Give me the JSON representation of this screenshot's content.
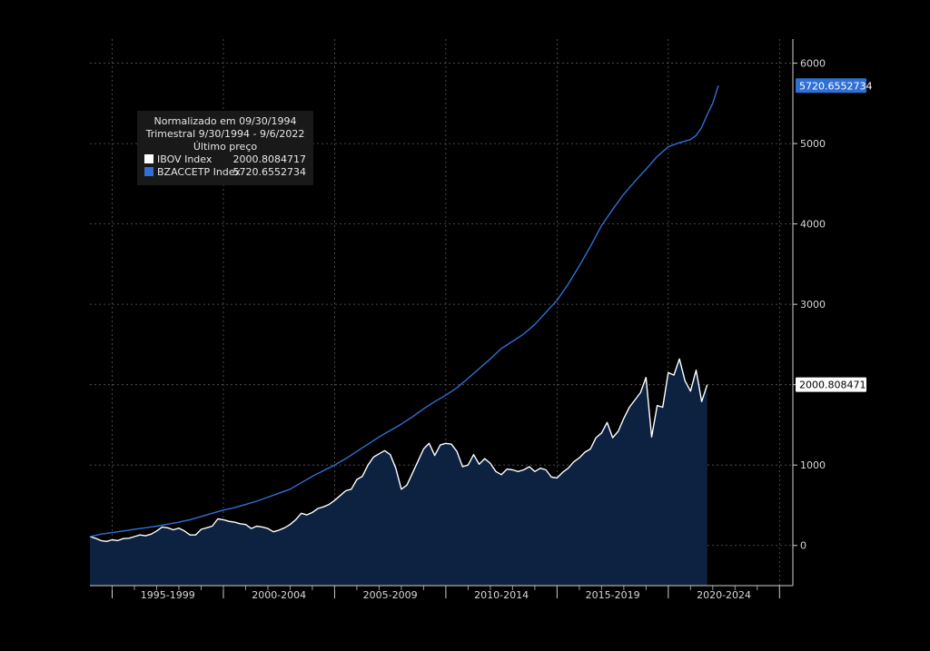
{
  "chart_data": {
    "type": "line",
    "legend": {
      "title_lines": [
        "Normalizado em 09/30/1994",
        "Trimestral 9/30/1994 - 9/6/2022",
        "Último preço"
      ],
      "entries": [
        {
          "label": "IBOV Index",
          "value": "2000.8084717"
        },
        {
          "label": "BZACCETP Index",
          "value": "5720.6552734"
        }
      ],
      "placement": "top-left"
    },
    "x_tick_labels": [
      "1995-1999",
      "2000-2004",
      "2005-2009",
      "2010-2014",
      "2015-2019",
      "2020-2024"
    ],
    "x_range": [
      1994.0,
      2025.6
    ],
    "ylim": [
      -500,
      6300
    ],
    "y_ticks": [
      0,
      1000,
      2000,
      3000,
      4000,
      5000,
      6000
    ],
    "grid": true,
    "series": [
      {
        "name": "IBOV Index",
        "color": "#ffffff",
        "fill": "#0d2240",
        "last_value_label": "2000.8084717",
        "points": [
          [
            1994.0,
            110
          ],
          [
            1994.25,
            90
          ],
          [
            1994.5,
            60
          ],
          [
            1994.75,
            50
          ],
          [
            1995.0,
            70
          ],
          [
            1995.25,
            60
          ],
          [
            1995.5,
            85
          ],
          [
            1995.75,
            90
          ],
          [
            1996.0,
            110
          ],
          [
            1996.25,
            130
          ],
          [
            1996.5,
            120
          ],
          [
            1996.75,
            140
          ],
          [
            1997.0,
            180
          ],
          [
            1997.25,
            230
          ],
          [
            1997.5,
            220
          ],
          [
            1997.75,
            195
          ],
          [
            1998.0,
            215
          ],
          [
            1998.25,
            180
          ],
          [
            1998.5,
            130
          ],
          [
            1998.75,
            130
          ],
          [
            1999.0,
            200
          ],
          [
            1999.25,
            220
          ],
          [
            1999.5,
            240
          ],
          [
            1999.75,
            330
          ],
          [
            2000.0,
            320
          ],
          [
            2000.25,
            300
          ],
          [
            2000.5,
            290
          ],
          [
            2000.75,
            270
          ],
          [
            2001.0,
            260
          ],
          [
            2001.25,
            210
          ],
          [
            2001.5,
            240
          ],
          [
            2001.75,
            230
          ],
          [
            2002.0,
            210
          ],
          [
            2002.25,
            170
          ],
          [
            2002.5,
            190
          ],
          [
            2002.75,
            220
          ],
          [
            2003.0,
            260
          ],
          [
            2003.25,
            320
          ],
          [
            2003.5,
            400
          ],
          [
            2003.75,
            380
          ],
          [
            2004.0,
            410
          ],
          [
            2004.25,
            460
          ],
          [
            2004.5,
            480
          ],
          [
            2004.75,
            510
          ],
          [
            2005.0,
            560
          ],
          [
            2005.25,
            620
          ],
          [
            2005.5,
            680
          ],
          [
            2005.75,
            700
          ],
          [
            2006.0,
            820
          ],
          [
            2006.25,
            860
          ],
          [
            2006.5,
            1000
          ],
          [
            2006.75,
            1100
          ],
          [
            2007.0,
            1140
          ],
          [
            2007.25,
            1180
          ],
          [
            2007.5,
            1130
          ],
          [
            2007.75,
            960
          ],
          [
            2008.0,
            700
          ],
          [
            2008.25,
            750
          ],
          [
            2008.5,
            900
          ],
          [
            2008.75,
            1050
          ],
          [
            2009.0,
            1200
          ],
          [
            2009.25,
            1270
          ],
          [
            2009.5,
            1120
          ],
          [
            2009.75,
            1250
          ],
          [
            2010.0,
            1270
          ],
          [
            2010.25,
            1260
          ],
          [
            2010.5,
            1170
          ],
          [
            2010.75,
            980
          ],
          [
            2011.0,
            1000
          ],
          [
            2011.25,
            1130
          ],
          [
            2011.5,
            1010
          ],
          [
            2011.75,
            1080
          ],
          [
            2012.0,
            1020
          ],
          [
            2012.25,
            920
          ],
          [
            2012.5,
            880
          ],
          [
            2012.75,
            950
          ],
          [
            2013.0,
            940
          ],
          [
            2013.25,
            920
          ],
          [
            2013.5,
            940
          ],
          [
            2013.75,
            980
          ],
          [
            2014.0,
            920
          ],
          [
            2014.25,
            960
          ],
          [
            2014.5,
            940
          ],
          [
            2014.75,
            850
          ],
          [
            2015.0,
            840
          ],
          [
            2015.25,
            910
          ],
          [
            2015.5,
            960
          ],
          [
            2015.75,
            1040
          ],
          [
            2016.0,
            1090
          ],
          [
            2016.25,
            1160
          ],
          [
            2016.5,
            1200
          ],
          [
            2016.75,
            1340
          ],
          [
            2017.0,
            1400
          ],
          [
            2017.25,
            1530
          ],
          [
            2017.5,
            1340
          ],
          [
            2017.75,
            1420
          ],
          [
            2018.0,
            1580
          ],
          [
            2018.25,
            1720
          ],
          [
            2018.5,
            1810
          ],
          [
            2018.75,
            1900
          ],
          [
            2019.0,
            2090
          ],
          [
            2019.25,
            1350
          ],
          [
            2019.5,
            1740
          ],
          [
            2019.75,
            1720
          ],
          [
            2020.0,
            2150
          ],
          [
            2020.25,
            2120
          ],
          [
            2020.5,
            2320
          ],
          [
            2020.75,
            2050
          ],
          [
            2021.0,
            1920
          ],
          [
            2021.25,
            2180
          ],
          [
            2021.5,
            1790
          ],
          [
            2021.75,
            2000
          ]
        ]
      },
      {
        "name": "BZACCETP Index",
        "color": "#2f6fd6",
        "last_value_label": "5720.6552734",
        "points": [
          [
            1994.0,
            110
          ],
          [
            1994.5,
            140
          ],
          [
            1995.0,
            160
          ],
          [
            1995.5,
            180
          ],
          [
            1996.0,
            200
          ],
          [
            1996.5,
            220
          ],
          [
            1997.0,
            240
          ],
          [
            1997.5,
            265
          ],
          [
            1998.0,
            290
          ],
          [
            1998.5,
            320
          ],
          [
            1999.0,
            360
          ],
          [
            1999.5,
            400
          ],
          [
            2000.0,
            440
          ],
          [
            2000.5,
            470
          ],
          [
            2001.0,
            510
          ],
          [
            2001.5,
            550
          ],
          [
            2002.0,
            600
          ],
          [
            2002.5,
            650
          ],
          [
            2003.0,
            700
          ],
          [
            2003.5,
            780
          ],
          [
            2004.0,
            860
          ],
          [
            2004.5,
            930
          ],
          [
            2005.0,
            1000
          ],
          [
            2005.5,
            1080
          ],
          [
            2006.0,
            1170
          ],
          [
            2006.5,
            1260
          ],
          [
            2007.0,
            1350
          ],
          [
            2007.5,
            1430
          ],
          [
            2008.0,
            1510
          ],
          [
            2008.5,
            1600
          ],
          [
            2009.0,
            1700
          ],
          [
            2009.5,
            1790
          ],
          [
            2010.0,
            1870
          ],
          [
            2010.5,
            1960
          ],
          [
            2011.0,
            2080
          ],
          [
            2011.5,
            2200
          ],
          [
            2012.0,
            2320
          ],
          [
            2012.5,
            2450
          ],
          [
            2013.0,
            2540
          ],
          [
            2013.5,
            2630
          ],
          [
            2014.0,
            2750
          ],
          [
            2014.5,
            2900
          ],
          [
            2015.0,
            3050
          ],
          [
            2015.5,
            3250
          ],
          [
            2016.0,
            3480
          ],
          [
            2016.5,
            3720
          ],
          [
            2017.0,
            3980
          ],
          [
            2017.5,
            4180
          ],
          [
            2018.0,
            4370
          ],
          [
            2018.5,
            4530
          ],
          [
            2019.0,
            4680
          ],
          [
            2019.5,
            4840
          ],
          [
            2020.0,
            4960
          ],
          [
            2020.5,
            5010
          ],
          [
            2021.0,
            5050
          ],
          [
            2021.25,
            5100
          ],
          [
            2021.5,
            5200
          ],
          [
            2021.75,
            5360
          ],
          [
            2022.0,
            5500
          ],
          [
            2022.25,
            5720.66
          ]
        ]
      }
    ]
  }
}
